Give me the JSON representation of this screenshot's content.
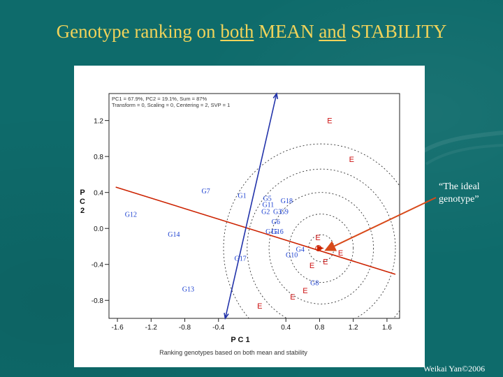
{
  "title": {
    "part1": "Genotype ranking on ",
    "part2": "both",
    "part3": " MEAN ",
    "part4": "and",
    "part5": " STABILITY"
  },
  "callout": {
    "line1": "“The ideal",
    "line2": "genotype”"
  },
  "footer": "Weikai Yan©2006",
  "colors": {
    "background": "#0e6b6b",
    "title": "#f0d35a",
    "regression_line": "#cc2200",
    "vertical_axis_line": "#2233aa",
    "genotype_label": "#1a3fd0",
    "environment_label": "#cc1111",
    "callout_arrow": "#d84a1a"
  },
  "chart_data": {
    "type": "scatter",
    "xlabel": "P C 1",
    "ylabel": "P C 2",
    "xlim": [
      -1.7,
      1.75
    ],
    "ylim": [
      -1.0,
      1.5
    ],
    "x_ticks": [
      "-1.6",
      "-1.2",
      "-0.8",
      "-0.4",
      "0.4",
      "0.8",
      "1.2",
      "1.6"
    ],
    "x_tick_values": [
      -1.6,
      -1.2,
      -0.8,
      -0.4,
      0.4,
      0.8,
      1.2,
      1.6
    ],
    "y_ticks": [
      "1.2",
      "0.8",
      "0.4",
      "0.0",
      "-0.4",
      "-0.8"
    ],
    "y_tick_values": [
      1.2,
      0.8,
      0.4,
      0.0,
      -0.4,
      -0.8
    ],
    "legend_lines": [
      "PC1 = 67.9%, PC2 = 19.1%, Sum = 87%",
      "Transform = 0, Scaling = 0, Centering = 2, SVP = 1"
    ],
    "caption": "Ranking genotypes based on both mean and stability",
    "ideal_point": [
      0.82,
      -0.22
    ],
    "circle_radii": [
      0.15,
      0.38,
      0.62,
      0.88,
      1.16
    ],
    "regression_line": [
      [
        -1.62,
        0.46
      ],
      [
        1.7,
        -0.51
      ]
    ],
    "vertical_line": [
      [
        -0.32,
        -1.0
      ],
      [
        0.29,
        1.5
      ]
    ],
    "genotypes": [
      {
        "label": "G7",
        "x": -0.55,
        "y": 0.39
      },
      {
        "label": "G1",
        "x": -0.12,
        "y": 0.34
      },
      {
        "label": "G5",
        "x": 0.18,
        "y": 0.31
      },
      {
        "label": "G11",
        "x": 0.19,
        "y": 0.24
      },
      {
        "label": "G18",
        "x": 0.41,
        "y": 0.28
      },
      {
        "label": "G2",
        "x": 0.16,
        "y": 0.16
      },
      {
        "label": "G3",
        "x": 0.3,
        "y": 0.16
      },
      {
        "label": "G9",
        "x": 0.38,
        "y": 0.16
      },
      {
        "label": "G12",
        "x": -1.44,
        "y": 0.13
      },
      {
        "label": "G6",
        "x": 0.28,
        "y": 0.05
      },
      {
        "label": "G15",
        "x": 0.23,
        "y": -0.06
      },
      {
        "label": "G16",
        "x": 0.3,
        "y": -0.06
      },
      {
        "label": "G14",
        "x": -0.93,
        "y": -0.09
      },
      {
        "label": "G4",
        "x": 0.57,
        "y": -0.26
      },
      {
        "label": "G10",
        "x": 0.47,
        "y": -0.32
      },
      {
        "label": "G17",
        "x": -0.14,
        "y": -0.36
      },
      {
        "label": "G8",
        "x": 0.74,
        "y": -0.63
      },
      {
        "label": "G13",
        "x": -0.76,
        "y": -0.7
      }
    ],
    "environments": [
      {
        "label": "E",
        "x": 0.92,
        "y": 1.17
      },
      {
        "label": "E",
        "x": 1.18,
        "y": 0.74
      },
      {
        "label": "E",
        "x": 0.78,
        "y": -0.13
      },
      {
        "label": "E",
        "x": 1.05,
        "y": -0.3
      },
      {
        "label": "E",
        "x": 0.87,
        "y": -0.4
      },
      {
        "label": "E",
        "x": 0.71,
        "y": -0.44
      },
      {
        "label": "E",
        "x": 0.63,
        "y": -0.72
      },
      {
        "label": "E",
        "x": 0.48,
        "y": -0.79
      },
      {
        "label": "E",
        "x": 0.09,
        "y": -0.89
      }
    ]
  }
}
